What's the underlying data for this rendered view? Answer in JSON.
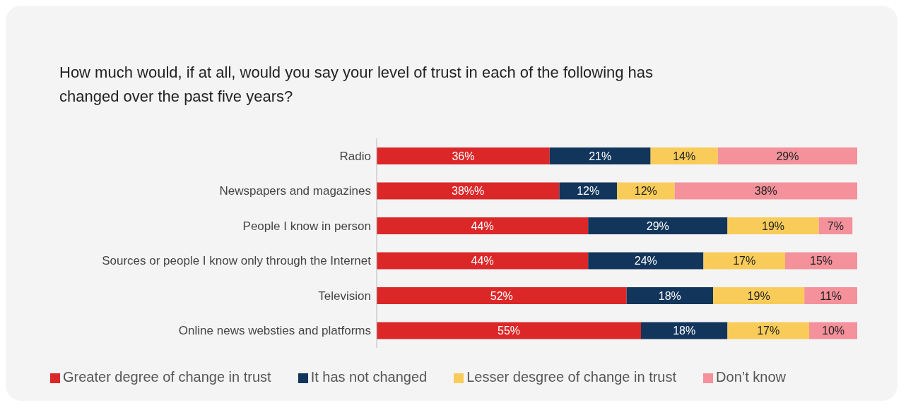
{
  "chart_data": {
    "type": "bar",
    "orientation": "horizontal",
    "stacked": true,
    "title": "How much would, if at all, would you say your level of trust in each of the following has changed over the past five years?",
    "categories": [
      "Radio",
      "Newspapers and magazines",
      "People I know in person",
      "Sources or people I know only through the Internet",
      "Television",
      "Online news websties and platforms"
    ],
    "series": [
      {
        "name": "Greater degree of change in trust",
        "color": "#dc2728",
        "values": [
          36,
          38,
          44,
          44,
          52,
          55
        ],
        "value_labels": [
          "36%",
          "38%%",
          "44%",
          "44%",
          "52%",
          "55%"
        ]
      },
      {
        "name": "It has not changed",
        "color": "#12355b",
        "values": [
          21,
          12,
          29,
          24,
          18,
          18
        ],
        "value_labels": [
          "21%",
          "12%",
          "29%",
          "24%",
          "18%",
          "18%"
        ]
      },
      {
        "name": "Lesser desgree of change in trust",
        "color": "#f9cc5a",
        "values": [
          14,
          12,
          19,
          17,
          19,
          17
        ],
        "value_labels": [
          "14%",
          "12%",
          "19%",
          "17%",
          "19%",
          "17%"
        ]
      },
      {
        "name": "Don’t know",
        "color": "#f4919b",
        "values": [
          29,
          38,
          7,
          15,
          11,
          10
        ],
        "value_labels": [
          "29%",
          "38%",
          "7%",
          "15%",
          "11%",
          "10%"
        ]
      }
    ],
    "legend": "bottom",
    "grid": false
  }
}
